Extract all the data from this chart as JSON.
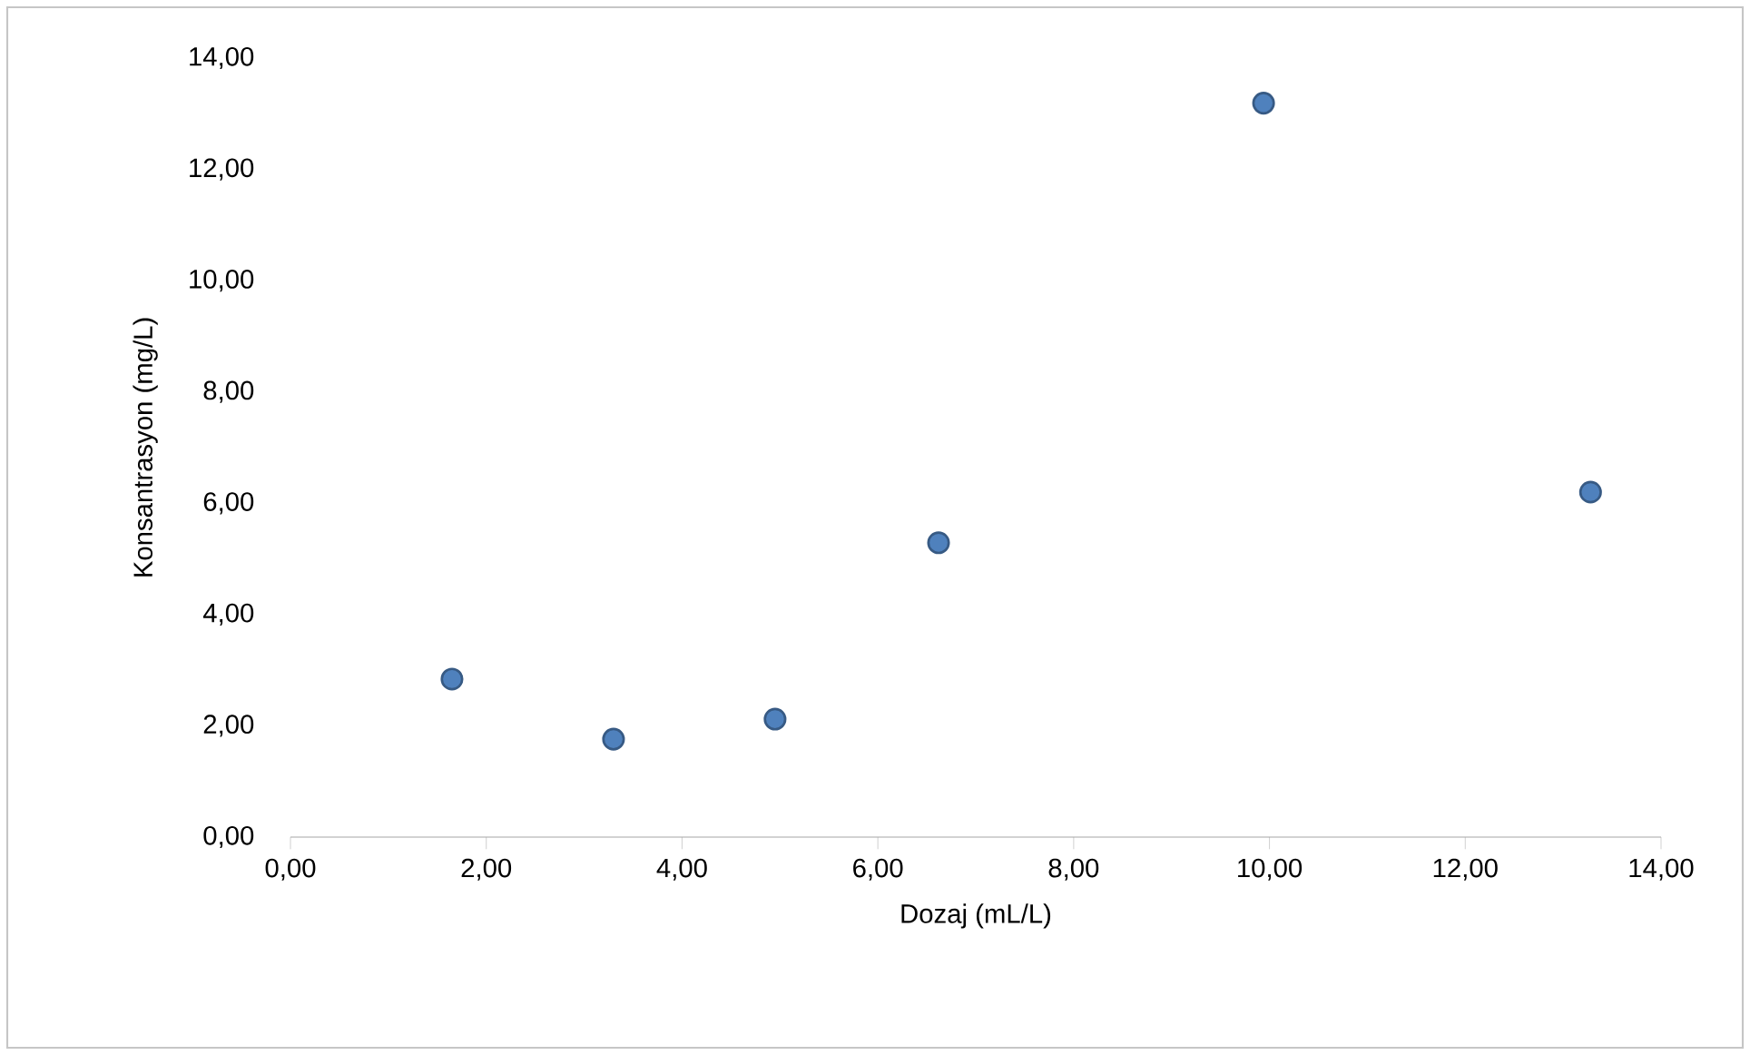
{
  "chart_data": {
    "type": "scatter",
    "xlabel": "Dozaj (mL/L)",
    "ylabel": "Konsantrasyon (mg/L)",
    "x": [
      1.65,
      3.3,
      4.95,
      6.62,
      9.94,
      13.28
    ],
    "series": [
      {
        "color": "#4f81bd",
        "values": [
          2.84,
          1.76,
          2.12,
          5.29,
          13.19,
          6.2
        ]
      }
    ],
    "marker": "circle",
    "xlim": [
      0,
      14
    ],
    "ylim": [
      0,
      14
    ],
    "xticks": [
      {
        "value": 0,
        "label": "0,00"
      },
      {
        "value": 2,
        "label": "2,00"
      },
      {
        "value": 4,
        "label": "4,00"
      },
      {
        "value": 6,
        "label": "6,00"
      },
      {
        "value": 8,
        "label": "8,00"
      },
      {
        "value": 10,
        "label": "10,00"
      },
      {
        "value": 12,
        "label": "12,00"
      },
      {
        "value": 14,
        "label": "14,00"
      }
    ],
    "yticks": [
      {
        "value": 0,
        "label": "0,00"
      },
      {
        "value": 2,
        "label": "2,00"
      },
      {
        "value": 4,
        "label": "4,00"
      },
      {
        "value": 6,
        "label": "6,00"
      },
      {
        "value": 8,
        "label": "8,00"
      },
      {
        "value": 10,
        "label": "10,00"
      },
      {
        "value": 12,
        "label": "12,00"
      },
      {
        "value": 14,
        "label": "14,00"
      }
    ]
  }
}
